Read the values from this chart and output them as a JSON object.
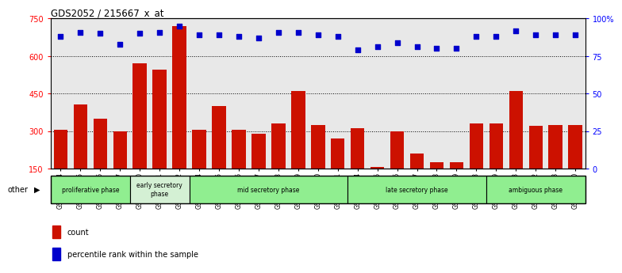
{
  "title": "GDS2052 / 215667_x_at",
  "samples": [
    "GSM109814",
    "GSM109815",
    "GSM109816",
    "GSM109817",
    "GSM109820",
    "GSM109821",
    "GSM109822",
    "GSM109824",
    "GSM109825",
    "GSM109826",
    "GSM109827",
    "GSM109828",
    "GSM109829",
    "GSM109830",
    "GSM109831",
    "GSM109834",
    "GSM109835",
    "GSM109836",
    "GSM109837",
    "GSM109838",
    "GSM109839",
    "GSM109818",
    "GSM109819",
    "GSM109823",
    "GSM109832",
    "GSM109833",
    "GSM109840"
  ],
  "counts": [
    305,
    405,
    350,
    300,
    570,
    545,
    720,
    305,
    400,
    305,
    290,
    330,
    460,
    325,
    270,
    310,
    155,
    300,
    210,
    175,
    175,
    330,
    330,
    460,
    320,
    325,
    325
  ],
  "percentiles": [
    88,
    91,
    90,
    83,
    90,
    91,
    95,
    89,
    89,
    88,
    87,
    91,
    91,
    89,
    88,
    79,
    81,
    84,
    81,
    80,
    80,
    88,
    88,
    92,
    89,
    89,
    89
  ],
  "phases": [
    {
      "name": "proliferative phase",
      "start": 0,
      "end": 4,
      "color": "#90EE90"
    },
    {
      "name": "early secretory\nphase",
      "start": 4,
      "end": 7,
      "color": "#d4f0d4"
    },
    {
      "name": "mid secretory phase",
      "start": 7,
      "end": 15,
      "color": "#90EE90"
    },
    {
      "name": "late secretory phase",
      "start": 15,
      "end": 22,
      "color": "#90EE90"
    },
    {
      "name": "ambiguous phase",
      "start": 22,
      "end": 27,
      "color": "#90EE90"
    }
  ],
  "ylim_left": [
    150,
    750
  ],
  "ylim_right": [
    0,
    100
  ],
  "yticks_left": [
    150,
    300,
    450,
    600,
    750
  ],
  "yticks_right": [
    0,
    25,
    50,
    75,
    100
  ],
  "grid_at": [
    300,
    450,
    600
  ],
  "bar_color": "#cc1100",
  "dot_color": "#0000cc",
  "bg_color": "#e8e8e8",
  "tick_bg_color": "#d0d0d0"
}
